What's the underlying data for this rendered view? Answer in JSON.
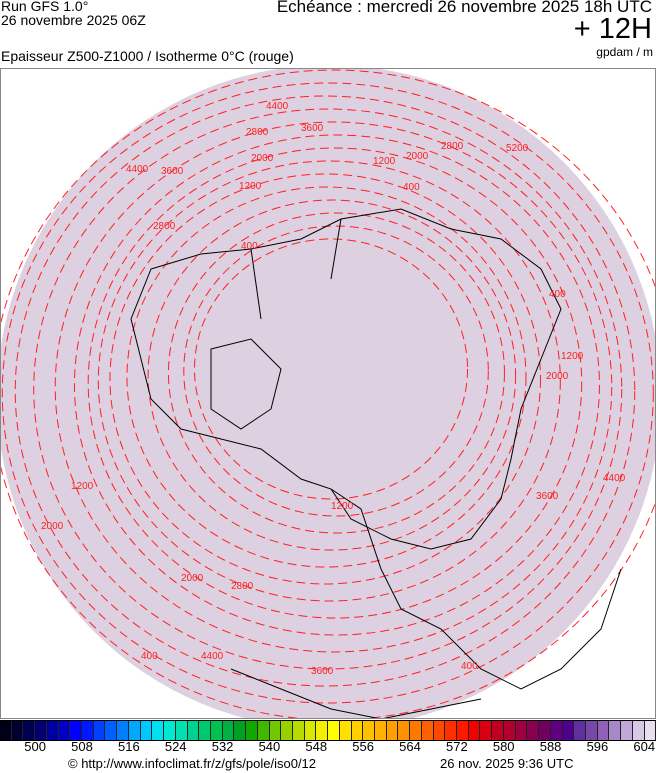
{
  "header": {
    "run": "Run GFS 1.0°",
    "run_date": "26 novembre 2025 06Z",
    "echeance": "Echéance : mercredi 26 novembre 2025 18h UTC",
    "lead": "+ 12H",
    "parameter": "Epaisseur Z500-Z1000 / Isotherme 0°C (rouge)",
    "unit": "gpdam / m"
  },
  "map": {
    "projection": "polar stereographic, north pole",
    "fill_color": "#ddd0e0",
    "isotherm_color": "#ff2020",
    "coast_color": "#000000",
    "contour_labels": [
      "4400",
      "3600",
      "2800",
      "2000",
      "1200",
      "400",
      "4400",
      "3600",
      "2800",
      "2000",
      "1200",
      "400",
      "5200",
      "2800",
      "2000",
      "1200",
      "400",
      "4400",
      "3600",
      "2800",
      "2000",
      "1200",
      "400",
      "4400",
      "3600",
      "2000",
      "1200",
      "400"
    ]
  },
  "colorbar": {
    "labels": [
      "500",
      "508",
      "516",
      "524",
      "532",
      "540",
      "548",
      "556",
      "564",
      "572",
      "580",
      "588",
      "596",
      "604"
    ],
    "colors": [
      "#000018",
      "#000030",
      "#000050",
      "#000070",
      "#0000a0",
      "#0000c8",
      "#0000ff",
      "#0018ff",
      "#0040ff",
      "#0060ff",
      "#0080ff",
      "#00a8ff",
      "#00c8ff",
      "#00e0f0",
      "#00e8d0",
      "#00e0b0",
      "#00d090",
      "#00c870",
      "#00c050",
      "#00b040",
      "#00a020",
      "#10a800",
      "#40b800",
      "#70c800",
      "#98d000",
      "#b8dc00",
      "#d8e800",
      "#f0f000",
      "#ffff00",
      "#ffe000",
      "#ffd000",
      "#ffc000",
      "#ffb000",
      "#ffa000",
      "#ff9000",
      "#ff7800",
      "#ff6000",
      "#ff4800",
      "#ff3000",
      "#ff1800",
      "#f00000",
      "#d80010",
      "#c00020",
      "#b00030",
      "#a00040",
      "#880050",
      "#700060",
      "#600080",
      "#500090",
      "#6030a0",
      "#7848a8",
      "#9060b8",
      "#a888c8",
      "#c0a8d8",
      "#d8c8e8",
      "#e8e0f0"
    ]
  },
  "footer": {
    "copyright": "© http://www.infoclimat.fr/z/gfs/pole/iso0/12",
    "timestamp": "26 nov. 2025  9:36 UTC"
  }
}
